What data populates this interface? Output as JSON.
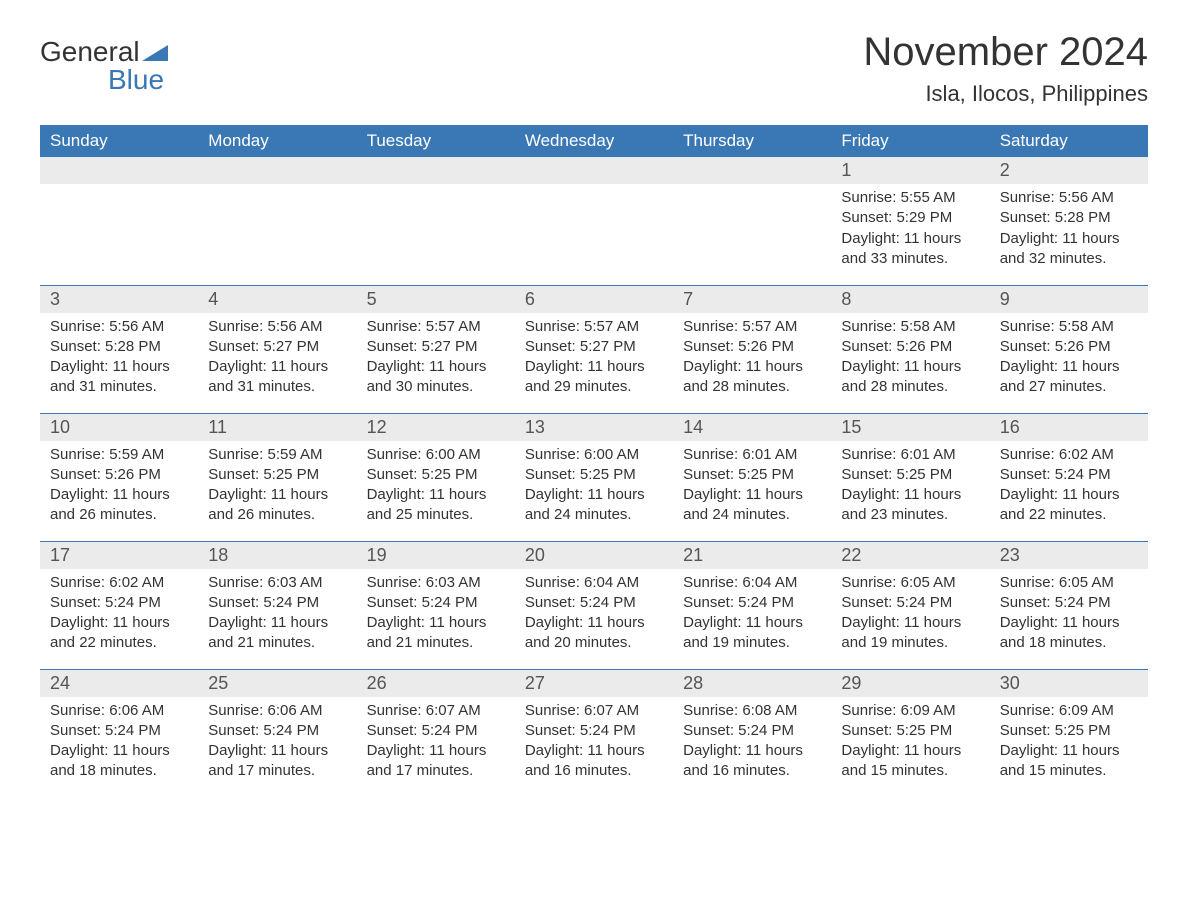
{
  "logo": {
    "word1": "General",
    "word2": "Blue"
  },
  "title": "November 2024",
  "location": "Isla, Ilocos, Philippines",
  "colors": {
    "header_bg": "#3a78b5",
    "header_text": "#ffffff",
    "daynum_bg": "#ebebeb",
    "body_text": "#333333",
    "page_bg": "#ffffff",
    "divider": "#3a78b5"
  },
  "layout": {
    "type": "calendar",
    "columns": 7,
    "rows": 5,
    "start_weekday": "Sunday"
  },
  "weekdays": [
    "Sunday",
    "Monday",
    "Tuesday",
    "Wednesday",
    "Thursday",
    "Friday",
    "Saturday"
  ],
  "weeks": [
    [
      null,
      null,
      null,
      null,
      null,
      {
        "day": 1,
        "sunrise": "5:55 AM",
        "sunset": "5:29 PM",
        "daylight": "11 hours and 33 minutes."
      },
      {
        "day": 2,
        "sunrise": "5:56 AM",
        "sunset": "5:28 PM",
        "daylight": "11 hours and 32 minutes."
      }
    ],
    [
      {
        "day": 3,
        "sunrise": "5:56 AM",
        "sunset": "5:28 PM",
        "daylight": "11 hours and 31 minutes."
      },
      {
        "day": 4,
        "sunrise": "5:56 AM",
        "sunset": "5:27 PM",
        "daylight": "11 hours and 31 minutes."
      },
      {
        "day": 5,
        "sunrise": "5:57 AM",
        "sunset": "5:27 PM",
        "daylight": "11 hours and 30 minutes."
      },
      {
        "day": 6,
        "sunrise": "5:57 AM",
        "sunset": "5:27 PM",
        "daylight": "11 hours and 29 minutes."
      },
      {
        "day": 7,
        "sunrise": "5:57 AM",
        "sunset": "5:26 PM",
        "daylight": "11 hours and 28 minutes."
      },
      {
        "day": 8,
        "sunrise": "5:58 AM",
        "sunset": "5:26 PM",
        "daylight": "11 hours and 28 minutes."
      },
      {
        "day": 9,
        "sunrise": "5:58 AM",
        "sunset": "5:26 PM",
        "daylight": "11 hours and 27 minutes."
      }
    ],
    [
      {
        "day": 10,
        "sunrise": "5:59 AM",
        "sunset": "5:26 PM",
        "daylight": "11 hours and 26 minutes."
      },
      {
        "day": 11,
        "sunrise": "5:59 AM",
        "sunset": "5:25 PM",
        "daylight": "11 hours and 26 minutes."
      },
      {
        "day": 12,
        "sunrise": "6:00 AM",
        "sunset": "5:25 PM",
        "daylight": "11 hours and 25 minutes."
      },
      {
        "day": 13,
        "sunrise": "6:00 AM",
        "sunset": "5:25 PM",
        "daylight": "11 hours and 24 minutes."
      },
      {
        "day": 14,
        "sunrise": "6:01 AM",
        "sunset": "5:25 PM",
        "daylight": "11 hours and 24 minutes."
      },
      {
        "day": 15,
        "sunrise": "6:01 AM",
        "sunset": "5:25 PM",
        "daylight": "11 hours and 23 minutes."
      },
      {
        "day": 16,
        "sunrise": "6:02 AM",
        "sunset": "5:24 PM",
        "daylight": "11 hours and 22 minutes."
      }
    ],
    [
      {
        "day": 17,
        "sunrise": "6:02 AM",
        "sunset": "5:24 PM",
        "daylight": "11 hours and 22 minutes."
      },
      {
        "day": 18,
        "sunrise": "6:03 AM",
        "sunset": "5:24 PM",
        "daylight": "11 hours and 21 minutes."
      },
      {
        "day": 19,
        "sunrise": "6:03 AM",
        "sunset": "5:24 PM",
        "daylight": "11 hours and 21 minutes."
      },
      {
        "day": 20,
        "sunrise": "6:04 AM",
        "sunset": "5:24 PM",
        "daylight": "11 hours and 20 minutes."
      },
      {
        "day": 21,
        "sunrise": "6:04 AM",
        "sunset": "5:24 PM",
        "daylight": "11 hours and 19 minutes."
      },
      {
        "day": 22,
        "sunrise": "6:05 AM",
        "sunset": "5:24 PM",
        "daylight": "11 hours and 19 minutes."
      },
      {
        "day": 23,
        "sunrise": "6:05 AM",
        "sunset": "5:24 PM",
        "daylight": "11 hours and 18 minutes."
      }
    ],
    [
      {
        "day": 24,
        "sunrise": "6:06 AM",
        "sunset": "5:24 PM",
        "daylight": "11 hours and 18 minutes."
      },
      {
        "day": 25,
        "sunrise": "6:06 AM",
        "sunset": "5:24 PM",
        "daylight": "11 hours and 17 minutes."
      },
      {
        "day": 26,
        "sunrise": "6:07 AM",
        "sunset": "5:24 PM",
        "daylight": "11 hours and 17 minutes."
      },
      {
        "day": 27,
        "sunrise": "6:07 AM",
        "sunset": "5:24 PM",
        "daylight": "11 hours and 16 minutes."
      },
      {
        "day": 28,
        "sunrise": "6:08 AM",
        "sunset": "5:24 PM",
        "daylight": "11 hours and 16 minutes."
      },
      {
        "day": 29,
        "sunrise": "6:09 AM",
        "sunset": "5:25 PM",
        "daylight": "11 hours and 15 minutes."
      },
      {
        "day": 30,
        "sunrise": "6:09 AM",
        "sunset": "5:25 PM",
        "daylight": "11 hours and 15 minutes."
      }
    ]
  ],
  "labels": {
    "sunrise": "Sunrise:",
    "sunset": "Sunset:",
    "daylight": "Daylight:"
  }
}
